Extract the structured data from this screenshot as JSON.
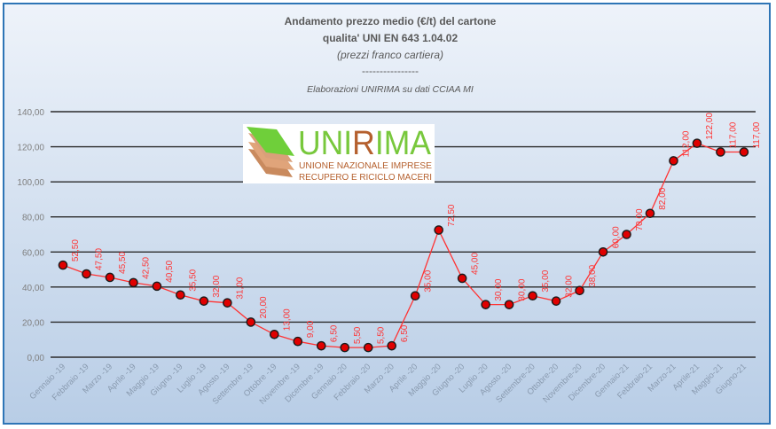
{
  "chart_data": {
    "type": "line",
    "title": [
      "Andamento prezzo medio (€/t) del cartone",
      "qualita' UNI EN 643 1.04.02"
    ],
    "subtitle": "(prezzi franco cartiera)",
    "separator": "----------------",
    "source": "Elaborazioni UNIRIMA su dati CCIAA MI",
    "categories": [
      "Gennaio -19",
      "Febbraio -19",
      "Marzo -19",
      "Aprile -19",
      "Maggio -19",
      "Giugno -19",
      "Luglio -19",
      "Agosto -19",
      "Settembre -19",
      "Ottobre -19",
      "Novembre -19",
      "Dicembre -19",
      "Gennaio -20",
      "Febbraio -20",
      "Marzo -20",
      "Aprile -20",
      "Maggio -20",
      "Giugno -20",
      "Luglio -20",
      "Agosto -20",
      "Settembre-20",
      "Ottobre-20",
      "Novembre-20",
      "Dicembre-20",
      "Gennaio-21",
      "Febbraio-21",
      "Marzo-21",
      "Aprile-21",
      "Maggio-21",
      "Giugno-21"
    ],
    "values": [
      52.5,
      47.5,
      45.5,
      42.5,
      40.5,
      35.5,
      32,
      31,
      20,
      13,
      9,
      6.5,
      5.5,
      5.5,
      6.5,
      35,
      72.5,
      45,
      30,
      30,
      35,
      32,
      38,
      60,
      70,
      82,
      112,
      122,
      117,
      117
    ],
    "data_labels": [
      "52,50",
      "47,50",
      "45,50",
      "42,50",
      "40,50",
      "35,50",
      "32,00",
      "31,00",
      "20,00",
      "13,00",
      "9,00",
      "6,50",
      "5,50",
      "5,50",
      "6,50",
      "35,00",
      "72,50",
      "45,00",
      "30,00",
      "30,00",
      "35,00",
      "32,00",
      "38,00",
      "60,00",
      "70,00",
      "82,00",
      "112,00",
      "122,00",
      "117,00",
      "117,00"
    ],
    "y_ticks": [
      "0,00",
      "20,00",
      "40,00",
      "60,00",
      "80,00",
      "100,00",
      "120,00",
      "140,00"
    ],
    "ylim": [
      0,
      140
    ],
    "grid": true,
    "legend": "none",
    "colors": {
      "line": "#ff3333",
      "marker": "#e00000",
      "marker_edge": "#1a1a1a",
      "label": "#ff3333",
      "grid": "#2b2b2b"
    }
  },
  "logo": {
    "name": "UNIRIMA",
    "line1": "UNIONE NAZIONALE IMPRESE",
    "line2": "RECUPERO E RICICLO MACERI"
  }
}
